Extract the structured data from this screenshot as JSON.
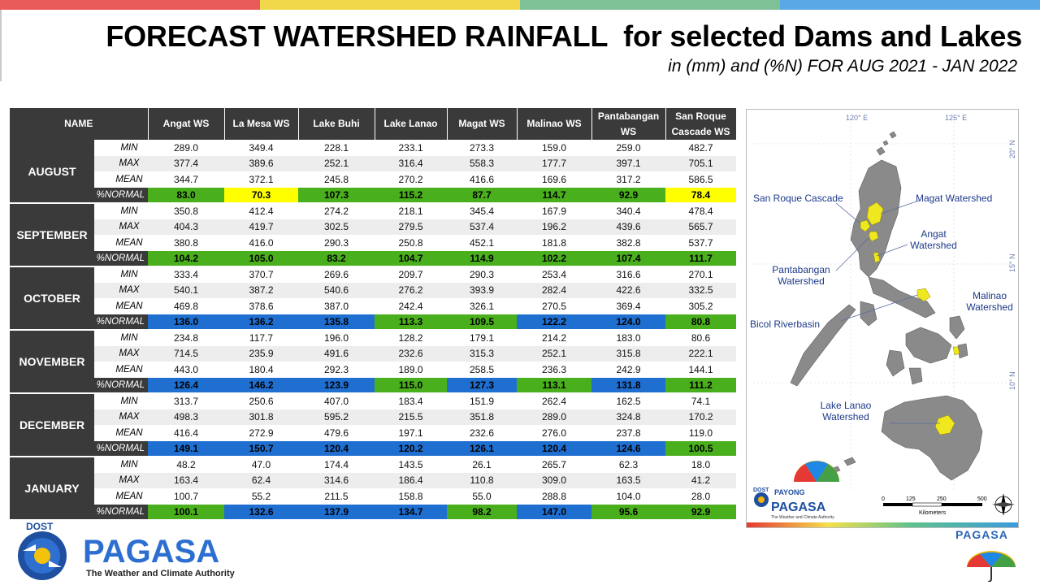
{
  "title": "FORECAST WATERSHED RAINFALL  for selected Dams and Lakes",
  "subtitle": "in (mm) and (%N) FOR AUG 2021 - JAN 2022",
  "colors": {
    "header_bg": "#3a3a3a",
    "green": "#4aaf1c",
    "yellow": "#ffff00",
    "blue": "#1f6fd1",
    "top_red": "#e85a5a",
    "top_yellow": "#f0d84a",
    "top_green": "#7fc196",
    "top_blue": "#5aa8e6"
  },
  "table": {
    "name_header": "NAME",
    "columns": [
      "Angat WS",
      "La Mesa WS",
      "Lake Buhi",
      "Lake Lanao",
      "Magat WS",
      "Malinao WS",
      "Pantabangan WS",
      "San Roque Cascade WS"
    ],
    "row_labels": [
      "MIN",
      "MAX",
      "MEAN",
      "%NORMAL"
    ],
    "months": [
      {
        "name": "AUGUST",
        "min": [
          "289.0",
          "349.4",
          "228.1",
          "233.1",
          "273.3",
          "159.0",
          "259.0",
          "482.7"
        ],
        "max": [
          "377.4",
          "389.6",
          "252.1",
          "316.4",
          "558.3",
          "177.7",
          "397.1",
          "705.1"
        ],
        "mean": [
          "344.7",
          "372.1",
          "245.8",
          "270.2",
          "416.6",
          "169.6",
          "317.2",
          "586.5"
        ],
        "normal": [
          "83.0",
          "70.3",
          "107.3",
          "115.2",
          "87.7",
          "114.7",
          "92.9",
          "78.4"
        ],
        "normal_colors": [
          "green",
          "yellow",
          "green",
          "green",
          "green",
          "green",
          "green",
          "yellow"
        ]
      },
      {
        "name": "SEPTEMBER",
        "min": [
          "350.8",
          "412.4",
          "274.2",
          "218.1",
          "345.4",
          "167.9",
          "340.4",
          "478.4"
        ],
        "max": [
          "404.3",
          "419.7",
          "302.5",
          "279.5",
          "537.4",
          "196.2",
          "439.6",
          "565.7"
        ],
        "mean": [
          "380.8",
          "416.0",
          "290.3",
          "250.8",
          "452.1",
          "181.8",
          "382.8",
          "537.7"
        ],
        "normal": [
          "104.2",
          "105.0",
          "83.2",
          "104.7",
          "114.9",
          "102.2",
          "107.4",
          "111.7"
        ],
        "normal_colors": [
          "green",
          "green",
          "green",
          "green",
          "green",
          "green",
          "green",
          "green"
        ]
      },
      {
        "name": "OCTOBER",
        "min": [
          "333.4",
          "370.7",
          "269.6",
          "209.7",
          "290.3",
          "253.4",
          "316.6",
          "270.1"
        ],
        "max": [
          "540.1",
          "387.2",
          "540.6",
          "276.2",
          "393.9",
          "282.4",
          "422.6",
          "332.5"
        ],
        "mean": [
          "469.8",
          "378.6",
          "387.0",
          "242.4",
          "326.1",
          "270.5",
          "369.4",
          "305.2"
        ],
        "normal": [
          "136.0",
          "136.2",
          "135.8",
          "113.3",
          "109.5",
          "122.2",
          "124.0",
          "80.8"
        ],
        "normal_colors": [
          "blue",
          "blue",
          "blue",
          "green",
          "green",
          "blue",
          "blue",
          "green"
        ]
      },
      {
        "name": "NOVEMBER",
        "min": [
          "234.8",
          "117.7",
          "196.0",
          "128.2",
          "179.1",
          "214.2",
          "183.0",
          "80.6"
        ],
        "max": [
          "714.5",
          "235.9",
          "491.6",
          "232.6",
          "315.3",
          "252.1",
          "315.8",
          "222.1"
        ],
        "mean": [
          "443.0",
          "180.4",
          "292.3",
          "189.0",
          "258.5",
          "236.3",
          "242.9",
          "144.1"
        ],
        "normal": [
          "126.4",
          "146.2",
          "123.9",
          "115.0",
          "127.3",
          "113.1",
          "131.8",
          "111.2"
        ],
        "normal_colors": [
          "blue",
          "blue",
          "blue",
          "green",
          "blue",
          "green",
          "blue",
          "green"
        ]
      },
      {
        "name": "DECEMBER",
        "min": [
          "313.7",
          "250.6",
          "407.0",
          "183.4",
          "151.9",
          "262.4",
          "162.5",
          "74.1"
        ],
        "max": [
          "498.3",
          "301.8",
          "595.2",
          "215.5",
          "351.8",
          "289.0",
          "324.8",
          "170.2"
        ],
        "mean": [
          "416.4",
          "272.9",
          "479.6",
          "197.1",
          "232.6",
          "276.0",
          "237.8",
          "119.0"
        ],
        "normal": [
          "149.1",
          "150.7",
          "120.4",
          "120.2",
          "126.1",
          "120.4",
          "124.6",
          "100.5"
        ],
        "normal_colors": [
          "blue",
          "blue",
          "blue",
          "blue",
          "blue",
          "blue",
          "blue",
          "green"
        ]
      },
      {
        "name": "JANUARY",
        "min": [
          "48.2",
          "47.0",
          "174.4",
          "143.5",
          "26.1",
          "265.7",
          "62.3",
          "18.0"
        ],
        "max": [
          "163.4",
          "62.4",
          "314.6",
          "186.4",
          "110.8",
          "309.0",
          "163.5",
          "41.2"
        ],
        "mean": [
          "100.7",
          "55.2",
          "211.5",
          "158.8",
          "55.0",
          "288.8",
          "104.0",
          "28.0"
        ],
        "normal": [
          "100.1",
          "132.6",
          "137.9",
          "134.7",
          "98.2",
          "147.0",
          "95.6",
          "92.9"
        ],
        "normal_colors": [
          "green",
          "blue",
          "blue",
          "blue",
          "green",
          "blue",
          "green",
          "green"
        ]
      }
    ]
  },
  "map": {
    "lon_labels": [
      "120° E",
      "125° E"
    ],
    "lat_labels": [
      "20° N",
      "15° N",
      "10° N"
    ],
    "labels": {
      "san_roque": "San Roque Cascade",
      "magat": "Magat Watershed",
      "angat_1": "Angat",
      "angat_2": "Watershed",
      "pantabangan_1": "Pantabangan",
      "pantabangan_2": "Watershed",
      "malinao_1": "Malinao",
      "malinao_2": "Watershed",
      "bicol": "Bicol Riverbasin",
      "lanao_1": "Lake Lanao",
      "lanao_2": "Watershed"
    },
    "scale_ticks": [
      "0",
      "125",
      "250",
      "500"
    ],
    "scale_unit": "Kilometers",
    "logo_dost": "DOST",
    "logo_payong": "PAYONG",
    "logo_pagasa": "PAGASA",
    "logo_tagline": "The Weather and Climate Authority"
  },
  "footer": {
    "dost": "DOST",
    "pagasa": "PAGASA",
    "tagline": "The Weather and Climate Authority",
    "right_pagasa": "PAGASA"
  }
}
